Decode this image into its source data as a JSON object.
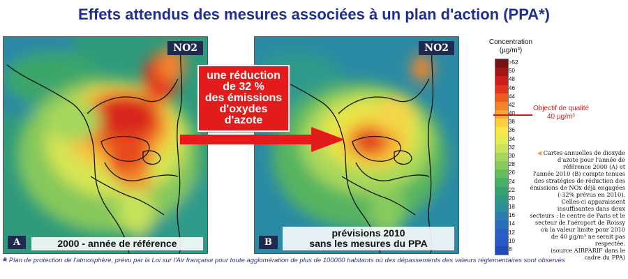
{
  "title": "Effets attendus des mesures associées à un plan d'action (PPA*)",
  "map_a": {
    "pollutant": "NO2",
    "panel_letter": "A",
    "caption": "2000 - année de référence"
  },
  "map_b": {
    "pollutant": "NO2",
    "panel_letter": "B",
    "caption_line1": "prévisions 2010",
    "caption_line2": "sans les mesures du PPA"
  },
  "reduction_box": {
    "line1": "une réduction",
    "line2": "de 32 %",
    "line3": "des émissions",
    "line4": "d'oxydes",
    "line5": "d'azote"
  },
  "legend": {
    "title_line1": "Concentration",
    "title_line2": "(µg/m³)",
    "ticks": [
      ">52",
      "50",
      "48",
      "46",
      "44",
      "42",
      "40",
      "38",
      "36",
      "34",
      "32",
      "30",
      "28",
      "26",
      "24",
      "22",
      "20",
      "18",
      "16",
      "14",
      "12",
      "10",
      "8"
    ],
    "colors": [
      "#7a1212",
      "#a31515",
      "#cc1f1a",
      "#e2351d",
      "#ef5b1f",
      "#f4822a",
      "#f8a834",
      "#fbd03c",
      "#f6e64a",
      "#e3ec55",
      "#c6e35a",
      "#a6d75c",
      "#86cb5c",
      "#64be5e",
      "#47b064",
      "#35a36e",
      "#2c9a82",
      "#2a8f98",
      "#2a80ad",
      "#2a6fbe",
      "#2a60c6",
      "#2a56c8",
      "#234bb8"
    ],
    "objective_line1": "Objectif de qualité",
    "objective_line2": "40 µg/m³",
    "objective_value": 40
  },
  "side_note": [
    "Cartes annuelles de dioxyde",
    "d'azote pour l'année de",
    "référence 2000 (A) et",
    "l'année 2010 (B) compte tenues",
    "des stratégies de réduction des",
    "émissions de NOx déjà engagées",
    "(-32% prévus en 2010).",
    "Celles-ci apparaissent",
    "insuffisantes dans deux",
    "secteurs : le centre de Paris et le",
    "secteur de l'aéroport de Roissy",
    "où la valeur limite pour 2010",
    "de 40 µg/m³ ne serait pas",
    "respectée.",
    "(source AIRPARIF dans le",
    "cadre du PPA)"
  ],
  "footnote": {
    "star": "*",
    "text": "Plan de protection de l'atmosphère, prévu par la Loi sur l'Air française pour toute agglomération de plus de 100000 habitants où des dépassements des valeurs réglementaires sont observés"
  }
}
